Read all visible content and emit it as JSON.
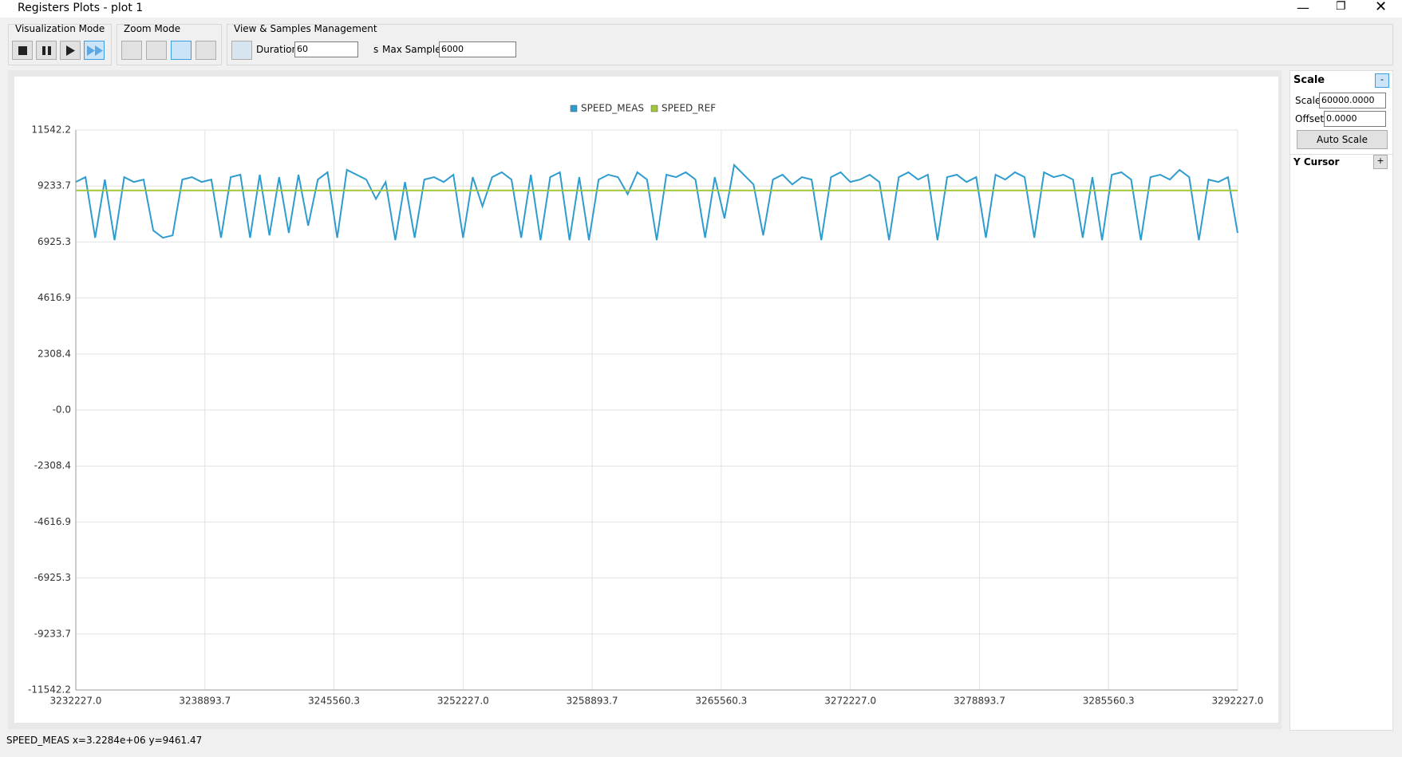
{
  "window": {
    "title": "Registers Plots - plot 1"
  },
  "toolbar": {
    "visualization_mode": "Visualization Mode",
    "zoom_mode": "Zoom Mode",
    "view_samples": "View & Samples Management",
    "duration_label": "Duration",
    "duration_value": "60",
    "duration_unit": "s",
    "max_samples_label": "Max Samples",
    "max_samples_value": "6000"
  },
  "side_panel": {
    "scale_header": "Scale",
    "collapse": "-",
    "scale_label": "Scale",
    "scale_value": "60000.0000",
    "offset_label": "Offset",
    "offset_value": "0.0000",
    "auto_scale": "Auto Scale",
    "y_cursor": "Y Cursor",
    "expand": "+"
  },
  "status": "SPEED_MEAS x=3.2284e+06 y=9461.47",
  "chart_data": {
    "type": "line",
    "grid": true,
    "legend": "top",
    "xlim": [
      3232227,
      3292227
    ],
    "xticks": [
      {
        "value": 3232227,
        "label": "3232227.0"
      },
      3238893.7,
      3245560.3,
      {
        "value": 3252227,
        "label": "3252227.0"
      },
      3258893.7,
      3265560.3,
      {
        "value": 3272227,
        "label": "3272227.0"
      },
      3278893.7,
      3285560.3,
      {
        "value": 3292227,
        "label": "3292227.0"
      }
    ],
    "ylim": [
      -11542.2,
      11542.2
    ],
    "yticks": [
      11542.2,
      9233.7,
      6925.3,
      4616.9,
      2308.4,
      {
        "value": 0,
        "label": "-0.0"
      },
      -2308.4,
      -4616.9,
      -6925.3,
      -9233.7,
      -11542.2
    ],
    "series": [
      {
        "name": "SPEED_MEAS",
        "color": "#2f9ccf",
        "x": [
          3232227,
          3232727,
          3233227,
          3233727,
          3234227,
          3234727,
          3235227,
          3235727,
          3236227,
          3236727,
          3237227,
          3237727,
          3238227,
          3238727,
          3239227,
          3239727,
          3240227,
          3240727,
          3241227,
          3241727,
          3242227,
          3242727,
          3243227,
          3243727,
          3244227,
          3244727,
          3245227,
          3245727,
          3246227,
          3246727,
          3247227,
          3247727,
          3248227,
          3248727,
          3249227,
          3249727,
          3250227,
          3250727,
          3251227,
          3251727,
          3252227,
          3252727,
          3253227,
          3253727,
          3254227,
          3254727,
          3255227,
          3255727,
          3256227,
          3256727,
          3257227,
          3257727,
          3258227,
          3258727,
          3259227,
          3259727,
          3260227,
          3260727,
          3261227,
          3261727,
          3262227,
          3262727,
          3263227,
          3263727,
          3264227,
          3264727,
          3265227,
          3265727,
          3266227,
          3266727,
          3267227,
          3267727,
          3268227,
          3268727,
          3269227,
          3269727,
          3270227,
          3270727,
          3271227,
          3271727,
          3272227,
          3272727,
          3273227,
          3273727,
          3274227,
          3274727,
          3275227,
          3275727,
          3276227,
          3276727,
          3277227,
          3277727,
          3278227,
          3278727,
          3279227,
          3279727,
          3280227,
          3280727,
          3281227,
          3281727,
          3282227,
          3282727,
          3283227,
          3283727,
          3284227,
          3284727,
          3285227,
          3285727,
          3286227,
          3286727,
          3287227,
          3287727,
          3288227,
          3288727,
          3289227,
          3289727,
          3290227,
          3290727,
          3291227,
          3291727,
          3292227
        ],
        "values": [
          9400,
          9600,
          7100,
          9500,
          7000,
          9600,
          9400,
          9500,
          7400,
          7100,
          7200,
          9500,
          9600,
          9400,
          9500,
          7100,
          9600,
          9700,
          7100,
          9700,
          7200,
          9600,
          7300,
          9700,
          7600,
          9500,
          9800,
          7100,
          9900,
          9700,
          9500,
          8700,
          9400,
          7000,
          9400,
          7100,
          9500,
          9600,
          9400,
          9700,
          7100,
          9600,
          8400,
          9600,
          9800,
          9500,
          7100,
          9700,
          7000,
          9600,
          9800,
          7000,
          9600,
          7000,
          9500,
          9700,
          9600,
          8900,
          9800,
          9500,
          7000,
          9700,
          9600,
          9800,
          9500,
          7100,
          9600,
          7900,
          10100,
          9700,
          9300,
          7200,
          9500,
          9700,
          9300,
          9600,
          9500,
          7000,
          9600,
          9800,
          9400,
          9500,
          9700,
          9400,
          7000,
          9600,
          9800,
          9500,
          9700,
          7000,
          9600,
          9700,
          9400,
          9600,
          7100,
          9700,
          9500,
          9800,
          9600,
          7100,
          9800,
          9600,
          9700,
          9500,
          7100,
          9600,
          7000,
          9700,
          9800,
          9500,
          7000,
          9600,
          9700,
          9500,
          9900,
          9600,
          7000,
          9500,
          9400,
          9600,
          7300
        ]
      },
      {
        "name": "SPEED_REF",
        "color": "#a4c43a",
        "x": [
          3232227,
          3292227
        ],
        "values": [
          9050,
          9050
        ]
      }
    ]
  }
}
